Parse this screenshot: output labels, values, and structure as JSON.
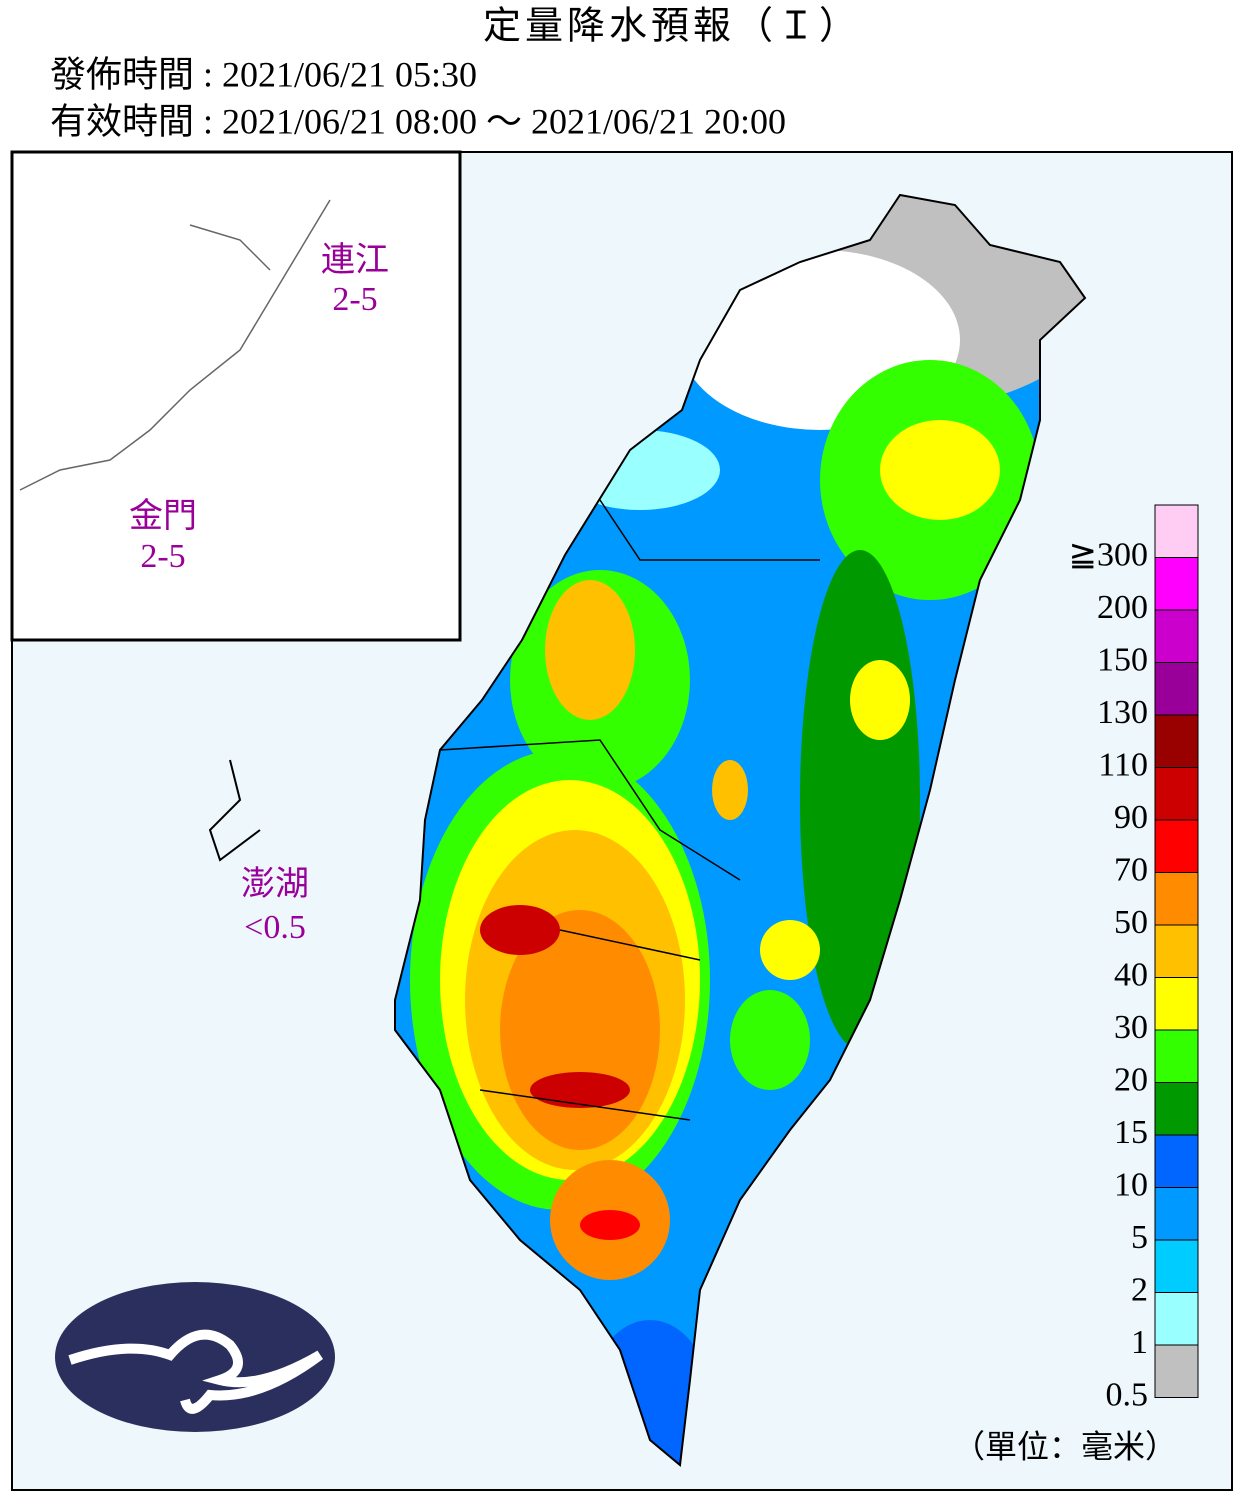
{
  "header": {
    "title": "定量降水預報（Ｉ）",
    "issued": "發佈時間 : 2021/06/21 05:30",
    "valid": "有效時間 : 2021/06/21 08:00 ～ 2021/06/21 20:00"
  },
  "regions": [
    {
      "name": "連江",
      "value": "2-5"
    },
    {
      "name": "金門",
      "value": "2-5"
    },
    {
      "name": "澎湖",
      "value": "<0.5"
    }
  ],
  "legend": {
    "labels": [
      "≧300",
      "200",
      "150",
      "130",
      "110",
      "90",
      "70",
      "50",
      "40",
      "30",
      "20",
      "15",
      "10",
      "5",
      "2",
      "1",
      "0.5"
    ],
    "colors": [
      "#ffccf4",
      "#ff00ff",
      "#cc00cc",
      "#990099",
      "#990000",
      "#cc0000",
      "#ff0000",
      "#ff8c00",
      "#ffc000",
      "#ffff00",
      "#33ff00",
      "#009900",
      "#0066ff",
      "#0099ff",
      "#00ccff",
      "#99ffff",
      "#c0c0c0"
    ],
    "unit": "（單位：毫米）"
  }
}
